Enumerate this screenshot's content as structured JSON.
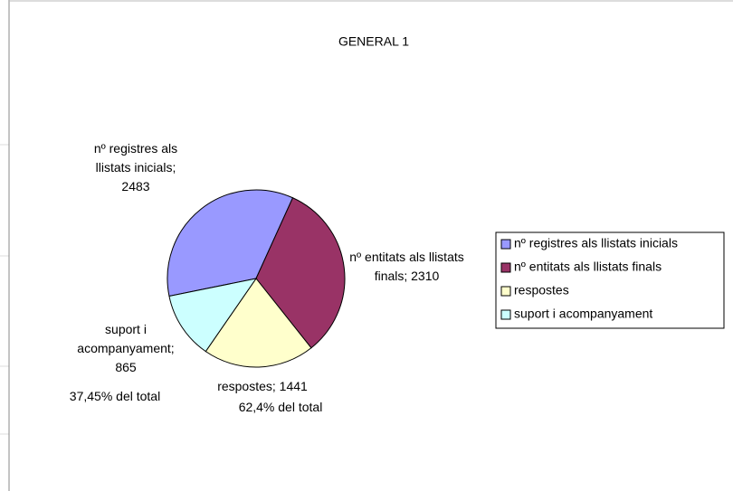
{
  "chart_data": {
    "type": "pie",
    "title": "GENERAL 1",
    "categories": [
      "nº registres als llistats inicials",
      "nº entitats als llistats finals",
      "respostes",
      "suport i acompanyament"
    ],
    "values": [
      2483,
      2310,
      1441,
      865
    ],
    "value_labels": [
      "nº registres als llistats inicials; 2483",
      "nº entitats als llistats finals; 2310",
      "respostes; 1441",
      "suport i acompanyament; 865"
    ],
    "colors": [
      "#9999ff",
      "#993366",
      "#ffffcc",
      "#ccffff"
    ],
    "annotations": [
      "37,45% del total",
      "62,4% del total"
    ],
    "legend": "right"
  }
}
